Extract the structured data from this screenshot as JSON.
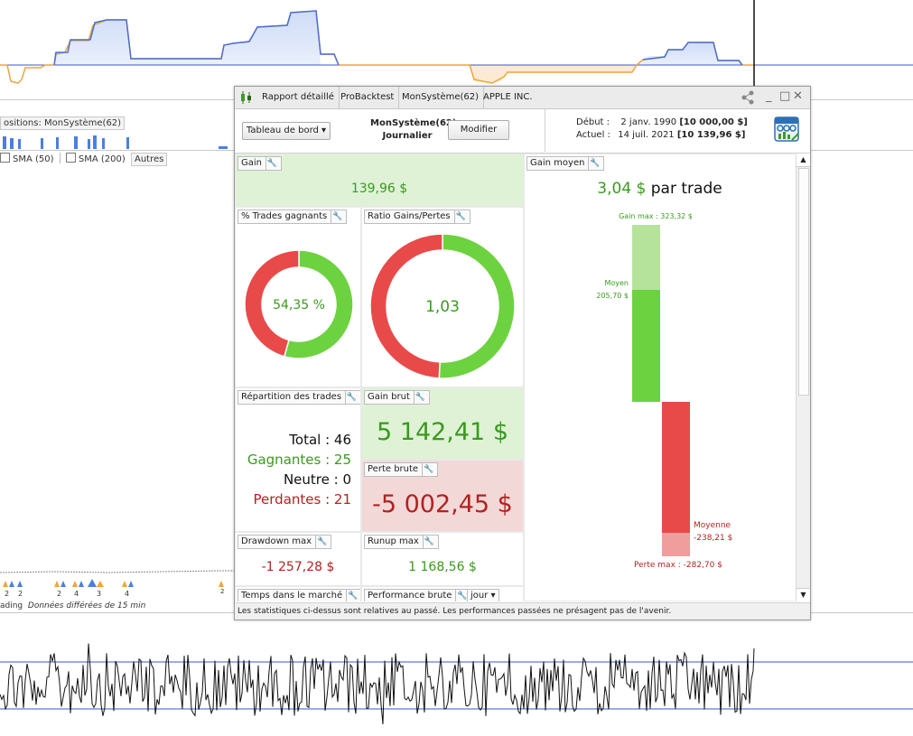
{
  "background": {
    "positions_label": "ositions: MonSystème(62)",
    "sma50_label": "SMA (50)",
    "sma200_label": "SMA (200)",
    "autres_label": "Autres",
    "data_note_prefix": "ading",
    "data_note": "Données différées de 15 min",
    "arrow_counts": [
      "2",
      "2",
      "2",
      "4",
      "3",
      "4",
      "2"
    ]
  },
  "window": {
    "tabs": [
      "Rapport détaillé",
      "ProBacktest",
      "MonSystème(62)",
      "APPLE INC."
    ],
    "dashboard_select": "Tableau de bord",
    "system_name": "MonSystème(62)",
    "timeframe": "Journalier",
    "modify_button": "Modifier",
    "debut_label": "Début :",
    "debut_date": "2 janv. 1990",
    "debut_capital": "[10 000,00 $]",
    "actuel_label": "Actuel :",
    "actuel_date": "14 juil. 2021",
    "actuel_capital": "[10 139,96 $]",
    "footer": "Les statistiques ci-dessus sont relatives au passé. Les performances passées ne présagent pas de l'avenir."
  },
  "widgets": {
    "gain": {
      "label": "Gain",
      "value": "139,96 $"
    },
    "gain_moyen": {
      "label": "Gain moyen",
      "value": "3,04 $",
      "suffix": "par trade",
      "gain_max_label": "Gain max : 323,32 $",
      "moyen_label": "Moyen",
      "moyen_value": "205,70 $",
      "moyenne_label": "Moyenne",
      "moyenne_value": "-238,21 $",
      "perte_max_label": "Perte max : -282,70 $"
    },
    "pct_trades": {
      "label": "% Trades gagnants",
      "value": "54,35 %",
      "percent": 54.35
    },
    "ratio": {
      "label": "Ratio Gains/Pertes",
      "value": "1,03",
      "win_fraction": 0.5074
    },
    "repartition": {
      "label": "Répartition des trades",
      "total": "Total : 46",
      "gagnantes": "Gagnantes : 25",
      "neutre": "Neutre : 0",
      "perdantes": "Perdantes : 21"
    },
    "gain_brut": {
      "label": "Gain brut",
      "value": "5 142,41 $"
    },
    "perte_brute": {
      "label": "Perte brute",
      "value": "-5 002,45 $"
    },
    "drawdown": {
      "label": "Drawdown max",
      "value": "-1 257,28 $"
    },
    "runup": {
      "label": "Runup max",
      "value": "1 168,56 $"
    },
    "temps": {
      "label": "Temps dans le marché"
    },
    "performance": {
      "label": "Performance brute",
      "period": "jour"
    }
  },
  "colors": {
    "green": "#6dd23f",
    "red": "#e84a4a",
    "green_text": "#3a9a1e",
    "red_text": "#b22222",
    "equity_blue": "#4a6fd6",
    "equity_orange": "#f2a33a"
  }
}
